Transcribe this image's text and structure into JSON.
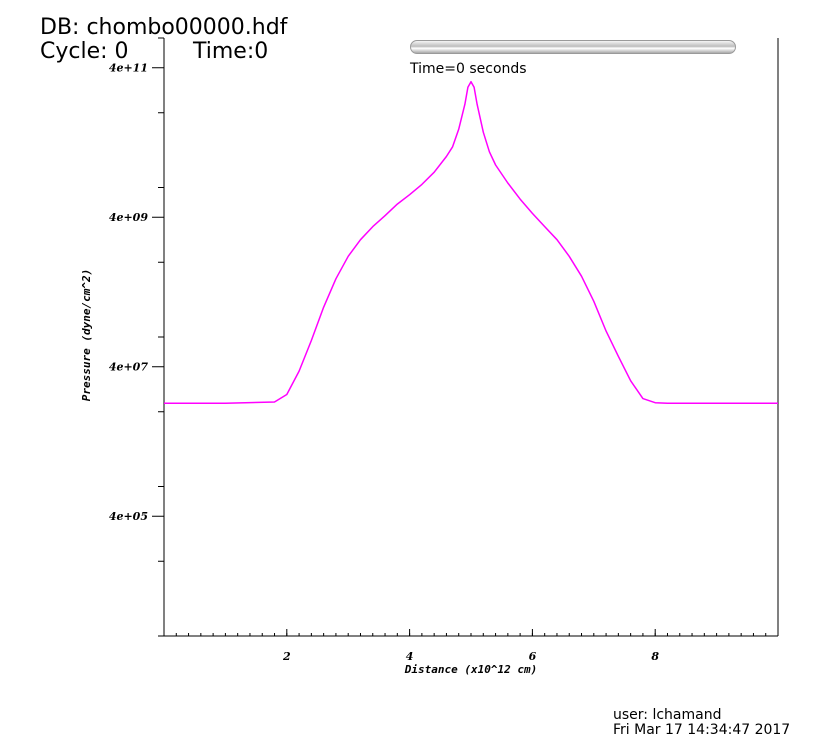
{
  "header": {
    "db_title": "DB: chombo00000.hdf",
    "cycle": "Cycle: 0",
    "time": "Time:0"
  },
  "time_slider": {
    "caption": "Time=0 seconds"
  },
  "footer": {
    "user": "user: lchamand",
    "date": "Fri Mar 17 14:34:47 2017"
  },
  "chart_data": {
    "type": "line",
    "xlabel": "Distance (x10^12 cm)",
    "ylabel": "Pressure (dyne/cm^2)",
    "xlim": [
      0,
      10
    ],
    "ylim": [
      10000,
      1000000000000
    ],
    "yscale": "log",
    "xticks": [
      2,
      4,
      6,
      8
    ],
    "xtick_labels": [
      "2",
      "4",
      "6",
      "8"
    ],
    "yticks": [
      400000,
      40000000,
      4000000000,
      400000000000
    ],
    "ytick_labels": [
      "4e+05",
      "4e+07",
      "4e+09",
      "4e+11"
    ],
    "grid": false,
    "series": [
      {
        "color": "#ff00ff",
        "x": [
          0.0,
          1.0,
          1.8,
          2.0,
          2.2,
          2.4,
          2.6,
          2.8,
          3.0,
          3.2,
          3.4,
          3.6,
          3.8,
          4.0,
          4.2,
          4.4,
          4.6,
          4.7,
          4.8,
          4.9,
          4.95,
          5.0,
          5.05,
          5.1,
          5.2,
          5.3,
          5.4,
          5.6,
          5.8,
          6.0,
          6.2,
          6.4,
          6.6,
          6.8,
          7.0,
          7.2,
          7.4,
          7.6,
          7.8,
          8.0,
          8.2,
          9.0,
          10.0
        ],
        "y": [
          13000000,
          13000000,
          13500000,
          17000000,
          35000000,
          90000000,
          250000000,
          600000000,
          1200000000,
          2000000000,
          3000000000,
          4200000000,
          6000000000,
          8000000000,
          11000000000,
          16000000000,
          26000000000,
          35000000000,
          60000000000,
          130000000000,
          220000000000,
          260000000000,
          220000000000,
          130000000000,
          55000000000,
          30000000000,
          20000000000,
          11500000000,
          7000000000,
          4500000000,
          3000000000,
          2000000000,
          1200000000,
          650000000,
          300000000,
          120000000,
          55000000,
          26000000,
          15000000,
          13200000,
          13000000,
          13000000,
          13000000
        ]
      }
    ]
  }
}
